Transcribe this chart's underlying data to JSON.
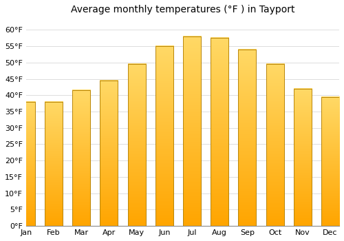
{
  "title": "Average monthly temperatures (°F ) in Tayport",
  "months": [
    "Jan",
    "Feb",
    "Mar",
    "Apr",
    "May",
    "Jun",
    "Jul",
    "Aug",
    "Sep",
    "Oct",
    "Nov",
    "Dec"
  ],
  "values": [
    38,
    38,
    41.5,
    44.5,
    49.5,
    55,
    58,
    57.5,
    54,
    49.5,
    42,
    39.5
  ],
  "bar_color_top": "#FFD966",
  "bar_color_bottom": "#FFA500",
  "bar_edge_color": "#B8860B",
  "ylim": [
    0,
    63
  ],
  "yticks": [
    0,
    5,
    10,
    15,
    20,
    25,
    30,
    35,
    40,
    45,
    50,
    55,
    60
  ],
  "background_color": "#FFFFFF",
  "grid_color": "#DDDDDD",
  "title_fontsize": 10,
  "tick_fontsize": 8,
  "bar_width": 0.65
}
